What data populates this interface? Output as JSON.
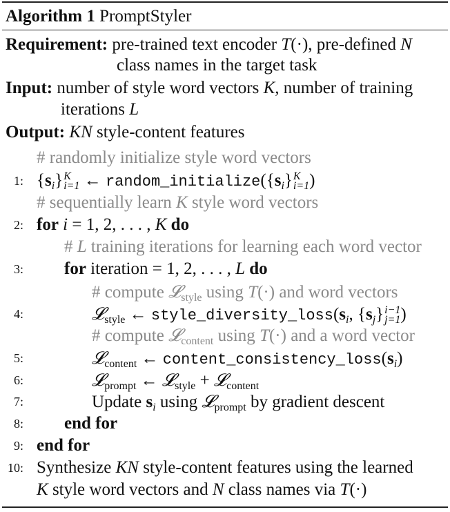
{
  "title": {
    "label": "Algorithm 1",
    "name": "PromptStyler"
  },
  "requirement": {
    "label": "Requirement:",
    "line1_a": "pre-trained text encoder ",
    "line1_b": ", pre-defined ",
    "line2": "class names in the target task"
  },
  "input": {
    "label": "Input:",
    "line1_a": "number of style word vectors ",
    "line1_b": ", number of training",
    "line2": "iterations "
  },
  "output": {
    "label": "Output:",
    "text": " style-content features"
  },
  "symbols": {
    "T": "T",
    "N": "N",
    "K": "K",
    "L": "L",
    "KN": "KN",
    "dot": "(·)",
    "arrow": "←",
    "s": "s",
    "i": "i",
    "j": "j",
    "calL": "𝓛",
    "style": "style",
    "content": "content",
    "prompt": "prompt",
    "eq1": "i=1",
    "j1": "j=1",
    "im1": "i−1"
  },
  "comments": {
    "c1": "# randomly initialize style word vectors",
    "c2_a": "# sequentially learn ",
    "c2_b": " style word vectors",
    "c3_a": "# ",
    "c3_b": " training iterations for learning each word vector",
    "c4_a": "# compute ",
    "c4_b": " using ",
    "c4_c": " and word vectors",
    "c5_a": "# compute ",
    "c5_b": " using ",
    "c5_c": " and a word vector"
  },
  "steps": {
    "n1": "1:",
    "n2": "2:",
    "n3": "3:",
    "n4": "4:",
    "n5": "5:",
    "n6": "6:",
    "n7": "7:",
    "n8": "8:",
    "n9": "9:",
    "n10": "10:",
    "func_init": "random_initialize",
    "for_kw": "for",
    "do_kw": "do",
    "loop1": " = 1, 2, . . . , ",
    "iteration": "iteration = 1, 2, . . . , ",
    "func_div": "style_diversity_loss",
    "func_con": "content_consistency_loss",
    "plus": " + ",
    "update_a": "Update ",
    "update_b": " using ",
    "update_c": " by gradient descent",
    "end_for": "end for",
    "final_a": "Synthesize ",
    "final_b": " style-content features using the learned",
    "final2_a": " style word vectors and ",
    "final2_b": " class names via "
  }
}
